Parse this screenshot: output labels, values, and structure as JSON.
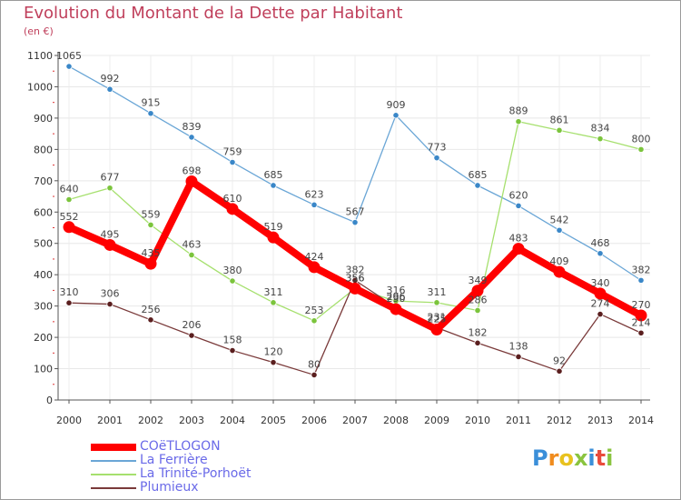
{
  "title": "Evolution du Montant de la Dette par Habitant",
  "subtitle": "(en €)",
  "logo": {
    "letters": [
      "P",
      "r",
      "o",
      "x",
      "i",
      "t",
      "i"
    ],
    "colors": [
      "#3b8fd9",
      "#f08c1e",
      "#e8c21e",
      "#8ac43f",
      "#3b8fd9",
      "#e94b3c",
      "#8ac43f"
    ]
  },
  "chart_data": {
    "type": "line",
    "title": "Evolution du Montant de la Dette par Habitant",
    "ylabel": "(en €)",
    "xlabel": "",
    "ylim": [
      0,
      1100
    ],
    "yticks": [
      0,
      100,
      200,
      300,
      400,
      500,
      600,
      700,
      800,
      900,
      1000,
      1100
    ],
    "grid": true,
    "legend_position": "bottom-left",
    "categories": [
      "2000",
      "2001",
      "2002",
      "2003",
      "2004",
      "2005",
      "2006",
      "2007",
      "2008",
      "2009",
      "2010",
      "2011",
      "2012",
      "2013",
      "2014"
    ],
    "series": [
      {
        "name": "COëTLOGON",
        "color": "#ff0000",
        "marker": "#ff0000",
        "highlight": true,
        "values": [
          552,
          495,
          435,
          698,
          610,
          519,
          424,
          356,
          290,
          225,
          349,
          483,
          409,
          340,
          270
        ]
      },
      {
        "name": "La Ferrière",
        "color": "#6aa6d6",
        "marker": "#3a87c8",
        "values": [
          1065,
          992,
          915,
          839,
          759,
          685,
          623,
          567,
          909,
          773,
          685,
          620,
          542,
          468,
          382
        ]
      },
      {
        "name": "La Trinité-Porhoët",
        "color": "#a6e06e",
        "marker": "#7bc43c",
        "values": [
          640,
          677,
          559,
          463,
          380,
          311,
          253,
          356,
          316,
          311,
          286,
          889,
          861,
          834,
          800
        ]
      },
      {
        "name": "Plumieux",
        "color": "#7a3a3a",
        "marker": "#5a1e1e",
        "values": [
          310,
          306,
          256,
          206,
          158,
          120,
          80,
          382,
          296,
          231,
          182,
          138,
          92,
          274,
          214
        ]
      }
    ]
  }
}
